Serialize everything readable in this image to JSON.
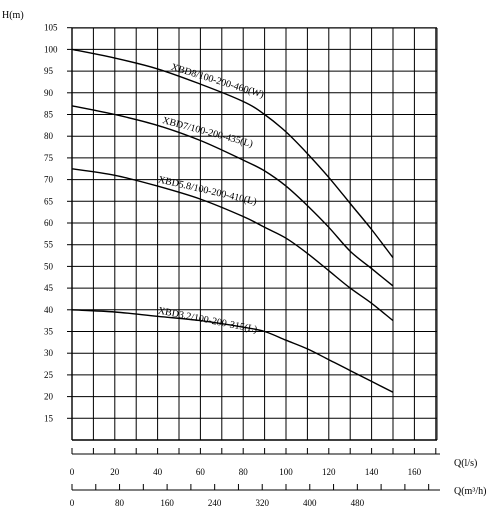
{
  "chart_data": {
    "type": "line",
    "ylabel": "H(m)",
    "xlabel": "Q(l/s)",
    "xlabel2": "Q(m³/h)",
    "xlim": [
      0,
      170
    ],
    "ylim": [
      10,
      105
    ],
    "y_ticks": [
      15,
      20,
      25,
      30,
      35,
      40,
      45,
      50,
      55,
      60,
      65,
      70,
      75,
      80,
      85,
      90,
      95,
      100,
      105
    ],
    "x_ticks": [
      0,
      20,
      40,
      60,
      80,
      100,
      120,
      140,
      160
    ],
    "x2_ticks": [
      0,
      80,
      160,
      240,
      320,
      400,
      480
    ],
    "grid": true,
    "series": [
      {
        "name": "XBD8/100-200-460(W)",
        "x": [
          0,
          20,
          40,
          60,
          80,
          90,
          100,
          110,
          120,
          130,
          140,
          150
        ],
        "y": [
          100,
          98,
          95.5,
          92,
          88,
          85,
          81,
          76,
          70.5,
          64.5,
          58.5,
          52
        ]
      },
      {
        "name": "XBD7/100-200-435(L)",
        "x": [
          0,
          20,
          40,
          60,
          80,
          90,
          100,
          110,
          120,
          130,
          140,
          150
        ],
        "y": [
          87,
          85,
          82.5,
          79,
          74.5,
          72,
          68.5,
          64,
          59,
          53.5,
          49.5,
          45.5
        ]
      },
      {
        "name": "XBD5.8/100-200-410(L)",
        "x": [
          0,
          20,
          40,
          60,
          80,
          90,
          100,
          110,
          120,
          130,
          140,
          150
        ],
        "y": [
          72.5,
          71,
          68.5,
          65.5,
          61.5,
          59,
          56.5,
          53,
          49,
          45,
          41.5,
          37.5
        ]
      },
      {
        "name": "XBD3.2/100-200-315(L)",
        "x": [
          0,
          20,
          40,
          60,
          80,
          90,
          100,
          110,
          120,
          130,
          140,
          150
        ],
        "y": [
          40,
          39.5,
          38.5,
          37.5,
          36,
          35,
          33,
          31,
          28.5,
          26,
          23.5,
          21
        ]
      }
    ]
  }
}
